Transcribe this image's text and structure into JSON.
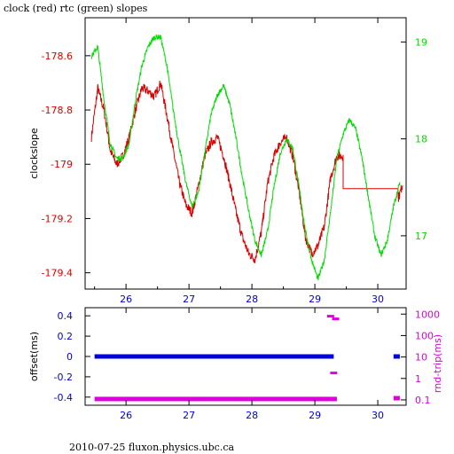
{
  "title": "clock (red) rtc (green) slopes",
  "footer": "2010-07-25 fluxon.physics.ubc.ca",
  "colors": {
    "red": "#dd0000",
    "green": "#00dd00",
    "blue": "#0000dd",
    "magenta": "#dd00dd",
    "black": "#000000"
  },
  "chart_data": [
    {
      "type": "line",
      "ylabel": "clockslope",
      "y2label": "",
      "xlim": [
        25.35,
        30.45
      ],
      "ylim": [
        -179.46,
        -178.46
      ],
      "y2lim": [
        16.45,
        19.25
      ],
      "x_ticks": [
        "26",
        "27",
        "28",
        "29",
        "30"
      ],
      "y_ticks": [
        "-178.6",
        "-178.8",
        "-179",
        "-179.2",
        "-179.4"
      ],
      "y2_ticks": [
        "19",
        "18",
        "17"
      ],
      "grid": false,
      "series": [
        {
          "name": "clock",
          "color": "red",
          "axis": "left",
          "x": [
            25.45,
            25.55,
            25.65,
            25.75,
            25.85,
            25.95,
            26.05,
            26.15,
            26.25,
            26.35,
            26.45,
            26.55,
            26.65,
            26.75,
            26.85,
            26.95,
            27.05,
            27.15,
            27.25,
            27.35,
            27.45,
            27.55,
            27.65,
            27.75,
            27.85,
            27.95,
            28.05,
            28.15,
            28.25,
            28.35,
            28.45,
            28.55,
            28.65,
            28.75,
            28.85,
            28.95,
            29.05,
            29.15,
            29.25,
            29.35,
            29.45,
            30.32,
            30.4
          ],
          "y": [
            -178.9,
            -178.72,
            -178.8,
            -178.95,
            -179.0,
            -178.97,
            -178.9,
            -178.8,
            -178.72,
            -178.73,
            -178.75,
            -178.7,
            -178.82,
            -178.95,
            -179.07,
            -179.15,
            -179.18,
            -179.08,
            -178.97,
            -178.92,
            -178.9,
            -178.97,
            -179.07,
            -179.18,
            -179.27,
            -179.33,
            -179.35,
            -179.25,
            -179.07,
            -178.97,
            -178.92,
            -178.9,
            -178.97,
            -179.1,
            -179.27,
            -179.33,
            -179.3,
            -179.23,
            -179.05,
            -178.97,
            -178.97,
            -179.13,
            -179.07
          ]
        },
        {
          "name": "rtc",
          "color": "green",
          "axis": "right",
          "x": [
            25.45,
            25.55,
            25.65,
            25.75,
            25.85,
            25.95,
            26.05,
            26.15,
            26.25,
            26.35,
            26.45,
            26.55,
            26.65,
            26.75,
            26.85,
            26.95,
            27.05,
            27.15,
            27.25,
            27.35,
            27.45,
            27.55,
            27.65,
            27.75,
            27.85,
            27.95,
            28.05,
            28.15,
            28.25,
            28.35,
            28.45,
            28.55,
            28.65,
            28.75,
            28.85,
            28.95,
            29.05,
            29.15,
            29.25,
            29.35,
            29.45,
            29.55,
            29.65,
            29.75,
            29.85,
            29.95,
            30.05,
            30.15,
            30.25,
            30.35
          ],
          "y": [
            18.85,
            18.95,
            18.4,
            17.95,
            17.8,
            17.8,
            17.95,
            18.4,
            18.75,
            18.95,
            19.05,
            19.05,
            18.75,
            18.3,
            17.9,
            17.55,
            17.3,
            17.45,
            17.85,
            18.25,
            18.45,
            18.55,
            18.35,
            18.0,
            17.6,
            17.25,
            16.95,
            16.8,
            17.05,
            17.5,
            17.85,
            18.0,
            17.9,
            17.5,
            17.05,
            16.75,
            16.55,
            16.75,
            17.25,
            17.8,
            18.05,
            18.2,
            18.1,
            17.8,
            17.4,
            17.0,
            16.8,
            16.95,
            17.3,
            17.55
          ]
        }
      ]
    },
    {
      "type": "scatter",
      "ylabel": "offset(ms)",
      "y2label": "rnd-trip(ms)",
      "xlim": [
        25.35,
        30.45
      ],
      "ylim": [
        -0.48,
        0.48
      ],
      "y2lim_log10": [
        -1.25,
        3.3
      ],
      "x_ticks": [
        "26",
        "27",
        "28",
        "29",
        "30"
      ],
      "y_ticks": [
        "0.4",
        "0.2",
        "0",
        "-0.2",
        "-0.4"
      ],
      "y2_ticks": [
        "1000",
        "100",
        "10",
        "1",
        "0.1"
      ],
      "grid": false,
      "series": [
        {
          "name": "offset",
          "color": "blue",
          "axis": "left",
          "segments": [
            [
              25.5,
              29.3,
              0.0
            ],
            [
              30.25,
              30.35,
              0.0
            ]
          ]
        },
        {
          "name": "rnd-trip",
          "color": "magenta",
          "axis": "right",
          "segments": [
            [
              25.5,
              29.35,
              0.11
            ],
            [
              30.25,
              30.35,
              0.12
            ]
          ],
          "outliers": [
            [
              29.25,
              800
            ],
            [
              29.3,
              1.8
            ],
            [
              29.33,
              600
            ]
          ]
        }
      ]
    }
  ]
}
